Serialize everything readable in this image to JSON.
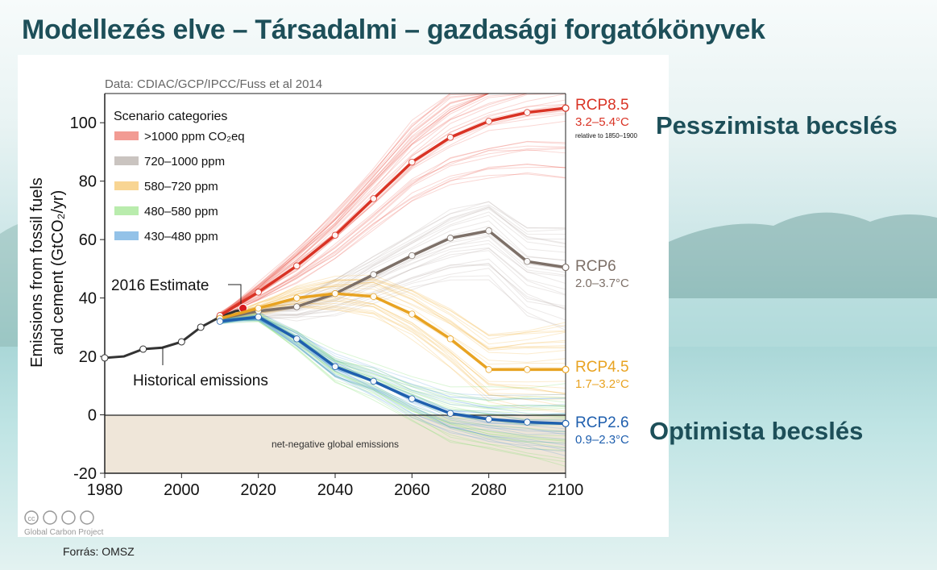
{
  "slide": {
    "title": "Modellezés elve – Társadalmi – gazdasági forgatókönyvek",
    "pessimist_label": "Pesszimista becslés",
    "optimist_label": "Optimista becslés",
    "source": "Forrás: OMSZ"
  },
  "chart_data": {
    "type": "line",
    "source_note": "Data: CDIAC/GCP/IPCC/Fuss et al 2014",
    "ylabel_line1": "Emissions from fossil fuels",
    "ylabel_line2": "and cement (GtCO₂/yr)",
    "xlim": [
      1980,
      2100
    ],
    "ylim": [
      -20,
      110
    ],
    "xticks": [
      1980,
      2000,
      2020,
      2040,
      2060,
      2080,
      2100
    ],
    "yticks": [
      -20,
      0,
      20,
      40,
      60,
      80,
      100
    ],
    "grid": false,
    "legend_title": "Scenario categories",
    "legend_position": "top-left",
    "legend": [
      {
        "label": ">1000 ppm CO₂eq",
        "color": "#e8483a"
      },
      {
        "label": "720–1000 ppm",
        "color": "#9e948c"
      },
      {
        "label": "580–720 ppm",
        "color": "#f2b33a"
      },
      {
        "label": "480–580 ppm",
        "color": "#7fdd6a"
      },
      {
        "label": "430–480 ppm",
        "color": "#3a8fd6"
      }
    ],
    "historical": {
      "label": "Historical emissions",
      "color": "#333333",
      "x": [
        1980,
        1985,
        1990,
        1995,
        2000,
        2005,
        2010,
        2014,
        2016
      ],
      "y": [
        19.5,
        20,
        22.5,
        23,
        25,
        30,
        33.5,
        35.5,
        36
      ]
    },
    "estimate_2016": {
      "label": "2016 Estimate",
      "x": 2016,
      "y": 36.5,
      "color": "#d7191c"
    },
    "net_negative_label": "net-negative global emissions",
    "series": [
      {
        "name": "RCP8.5",
        "range": "3.2–5.4°C",
        "note": "relative to 1850–1900",
        "color": "#d93325",
        "x": [
          2010,
          2020,
          2030,
          2040,
          2050,
          2060,
          2070,
          2080,
          2090,
          2100
        ],
        "y": [
          34,
          42,
          51,
          61.5,
          74,
          86.5,
          95,
          100.5,
          103.5,
          105
        ]
      },
      {
        "name": "RCP6",
        "range": "2.0–3.7°C",
        "color": "#7d7068",
        "x": [
          2010,
          2020,
          2030,
          2040,
          2050,
          2060,
          2070,
          2080,
          2090,
          2100
        ],
        "y": [
          33,
          35.5,
          37,
          41.5,
          48,
          54.5,
          60.5,
          63,
          52.5,
          50.5
        ]
      },
      {
        "name": "RCP4.5",
        "range": "1.7–3.2°C",
        "color": "#e8a322",
        "x": [
          2010,
          2020,
          2030,
          2040,
          2050,
          2060,
          2070,
          2080,
          2090,
          2100
        ],
        "y": [
          33,
          36.5,
          40,
          41.5,
          40.5,
          34.5,
          26,
          15.5,
          15.5,
          15.5
        ]
      },
      {
        "name": "RCP2.6",
        "range": "0.9–2.3°C",
        "color": "#1f5fae",
        "x": [
          2010,
          2020,
          2030,
          2040,
          2050,
          2060,
          2070,
          2080,
          2090,
          2100
        ],
        "y": [
          32,
          33.5,
          26,
          16.5,
          11.5,
          5.5,
          0.5,
          -1.5,
          -2.5,
          -3
        ]
      }
    ],
    "footer": {
      "license_icons": "cc-by-nc-sa-icons",
      "credit": "Global Carbon Project"
    }
  }
}
